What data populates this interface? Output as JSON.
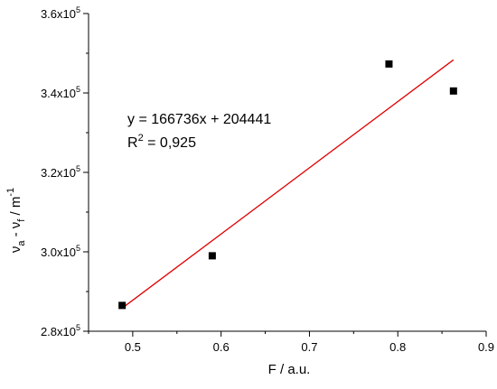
{
  "chart_data": {
    "type": "scatter",
    "xlabel": "F / a.u.",
    "ylabel": {
      "parts": [
        {
          "text": "ν",
          "baseline": "normal"
        },
        {
          "text": "a",
          "baseline": "sub"
        },
        {
          "text": " - ν",
          "baseline": "normal"
        },
        {
          "text": "f",
          "baseline": "sub"
        },
        {
          "text": " / m",
          "baseline": "normal"
        },
        {
          "text": "-1",
          "baseline": "super"
        }
      ]
    },
    "xlim": [
      0.45,
      0.9
    ],
    "ylim": [
      280000,
      360000
    ],
    "x_ticks": [
      {
        "value": 0.5,
        "label": "0.5"
      },
      {
        "value": 0.6,
        "label": "0.6"
      },
      {
        "value": 0.7,
        "label": "0.7"
      },
      {
        "value": 0.8,
        "label": "0.8"
      },
      {
        "value": 0.9,
        "label": "0.9"
      }
    ],
    "y_ticks": [
      {
        "value": 280000,
        "mantissa": "2.8x10",
        "exponent": "5"
      },
      {
        "value": 300000,
        "mantissa": "3.0x10",
        "exponent": "5"
      },
      {
        "value": 320000,
        "mantissa": "3.2x10",
        "exponent": "5"
      },
      {
        "value": 340000,
        "mantissa": "3.4x10",
        "exponent": "5"
      },
      {
        "value": 360000,
        "mantissa": "3.6x10",
        "exponent": "5"
      }
    ],
    "grid": false,
    "legend": "none",
    "points": [
      {
        "x": 0.488,
        "y": 286500
      },
      {
        "x": 0.59,
        "y": 299000
      },
      {
        "x": 0.79,
        "y": 347300
      },
      {
        "x": 0.863,
        "y": 340500
      }
    ],
    "fit": {
      "slope": 166736,
      "intercept": 204441,
      "x_range": [
        0.488,
        0.863
      ],
      "color": "#e00000"
    },
    "annotations": {
      "equation": "y = 166736x + 204441",
      "r2_base": "R",
      "r2_exp": "2",
      "r2_value": " = 0,925"
    },
    "marker_color": "#000000",
    "axis_color": "#000000"
  }
}
